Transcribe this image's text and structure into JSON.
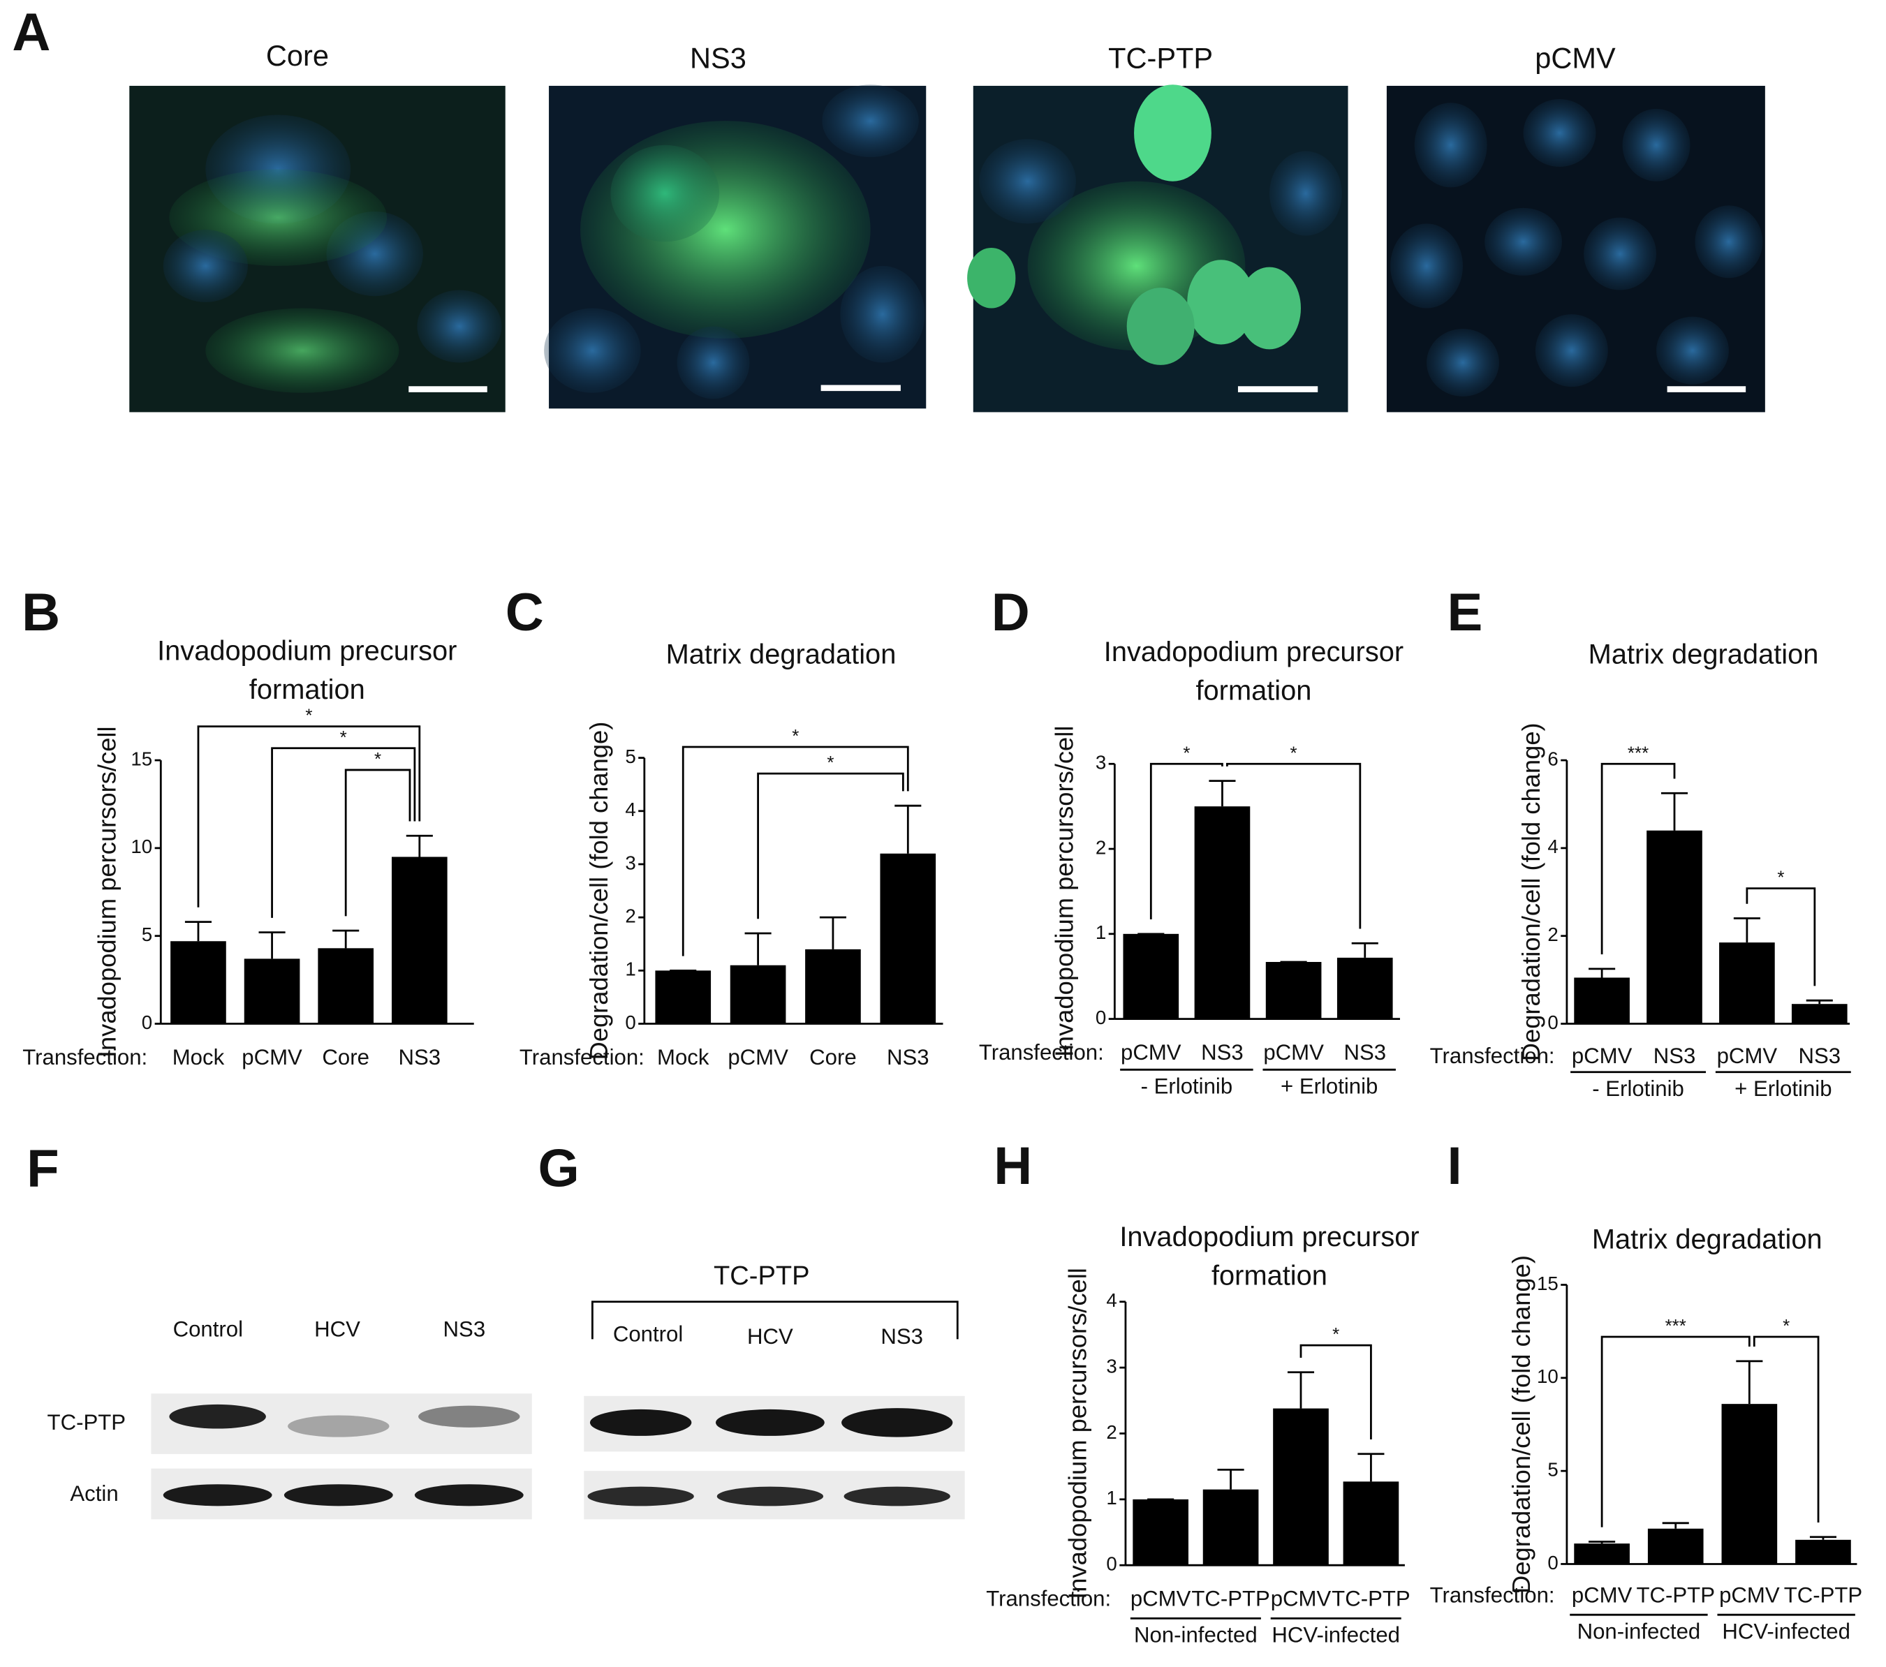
{
  "image_panel": {
    "panel": "A",
    "labels": [
      "Core",
      "NS3",
      "TC-PTP",
      "pCMV"
    ]
  },
  "blot_f": {
    "panel": "F",
    "lanes": [
      "Control",
      "HCV",
      "NS3"
    ],
    "rows": [
      "TC-PTP",
      "Actin"
    ]
  },
  "blot_g": {
    "panel": "G",
    "header": "TC-PTP",
    "lanes": [
      "Control",
      "HCV",
      "NS3"
    ]
  },
  "chart_data": [
    {
      "type": "bar",
      "panel": "B",
      "title": [
        "Invadopodium precursor",
        "formation"
      ],
      "y_label": "Invadopodium percursors/cell",
      "x_prefix": "Transfection:",
      "categories": [
        "Mock",
        "pCMV",
        "Core",
        "NS3"
      ],
      "values": [
        4.7,
        3.7,
        4.3,
        9.5
      ],
      "errors": [
        1.1,
        1.5,
        1.0,
        1.2
      ],
      "color": "#000000",
      "ylim": [
        0,
        15
      ],
      "yticks": [
        0,
        5,
        10,
        15
      ],
      "significance": [
        {
          "from": 0,
          "to": 3,
          "label": "*"
        },
        {
          "from": 1,
          "to": 3,
          "label": "*"
        },
        {
          "from": 2,
          "to": 3,
          "label": "*"
        }
      ]
    },
    {
      "type": "bar",
      "panel": "C",
      "title": [
        "Matrix degradation"
      ],
      "y_label": "Degradation/cell (fold change)",
      "x_prefix": "Transfection:",
      "categories": [
        "Mock",
        "pCMV",
        "Core",
        "NS3"
      ],
      "values": [
        1.0,
        1.1,
        1.4,
        3.2
      ],
      "errors": [
        0,
        0.6,
        0.6,
        0.9
      ],
      "color": "#000000",
      "ylim": [
        0,
        5
      ],
      "yticks": [
        0,
        1,
        2,
        3,
        4,
        5
      ],
      "significance": [
        {
          "from": 0,
          "to": 3,
          "label": "*"
        },
        {
          "from": 1,
          "to": 3,
          "label": "*"
        }
      ]
    },
    {
      "type": "bar",
      "panel": "D",
      "title": [
        "Invadopodium precursor",
        "formation"
      ],
      "y_label": "Invadopodium percursors/cell",
      "x_prefix": "Transfection:",
      "categories": [
        "pCMV",
        "NS3",
        "pCMV",
        "NS3"
      ],
      "group_labels": [
        "- Erlotinib",
        "+ Erlotinib"
      ],
      "values": [
        1.0,
        2.5,
        0.67,
        0.72
      ],
      "errors": [
        0,
        0.3,
        0,
        0.17
      ],
      "color": "#000000",
      "ylim": [
        0,
        3
      ],
      "yticks": [
        0,
        1,
        2,
        3
      ],
      "significance": [
        {
          "from": 0,
          "to": 1,
          "label": "*"
        },
        {
          "from": 1,
          "to": 3,
          "label": "*"
        }
      ]
    },
    {
      "type": "bar",
      "panel": "E",
      "title": [
        "Matrix degradation"
      ],
      "y_label": "Degradation/cell (fold change)",
      "x_prefix": "Transfection:",
      "categories": [
        "pCMV",
        "NS3",
        "pCMV",
        "NS3"
      ],
      "group_labels": [
        "- Erlotinib",
        "+ Erlotinib"
      ],
      "values": [
        1.05,
        4.4,
        1.85,
        0.45
      ],
      "errors": [
        0.2,
        0.85,
        0.55,
        0.08
      ],
      "color": "#000000",
      "ylim": [
        0,
        6
      ],
      "yticks": [
        0,
        2,
        4,
        6
      ],
      "significance": [
        {
          "from": 0,
          "to": 1,
          "label": "***"
        },
        {
          "from": 2,
          "to": 3,
          "label": "*"
        }
      ]
    },
    {
      "type": "bar",
      "panel": "H",
      "title": [
        "Invadopodium precursor",
        "formation"
      ],
      "y_label": "Invadopodium percursors/cell",
      "x_prefix": "Transfection:",
      "categories": [
        "pCMV",
        "TC-PTP",
        "pCMV",
        "TC-PTP"
      ],
      "group_labels": [
        "Non-infected",
        "HCV-infected"
      ],
      "values": [
        1.0,
        1.15,
        2.38,
        1.27
      ],
      "errors": [
        0,
        0.3,
        0.55,
        0.42
      ],
      "color": "#000000",
      "ylim": [
        0,
        4
      ],
      "yticks": [
        0,
        1,
        2,
        3,
        4
      ],
      "significance": [
        {
          "from": 2,
          "to": 3,
          "label": "*"
        }
      ]
    },
    {
      "type": "bar",
      "panel": "I",
      "title": [
        "Matrix degradation"
      ],
      "y_label": "Degradation/cell (fold change)",
      "x_prefix": "Transfection:",
      "categories": [
        "pCMV",
        "TC-PTP",
        "pCMV",
        "TC-PTP"
      ],
      "group_labels": [
        "Non-infected",
        "HCV-infected"
      ],
      "values": [
        1.1,
        1.9,
        8.6,
        1.3
      ],
      "errors": [
        0.1,
        0.3,
        2.3,
        0.15
      ],
      "color": "#000000",
      "ylim": [
        0,
        15
      ],
      "yticks": [
        0,
        5,
        10,
        15
      ],
      "significance": [
        {
          "from": 0,
          "to": 2,
          "label": "***"
        },
        {
          "from": 2,
          "to": 3,
          "label": "*"
        }
      ]
    }
  ]
}
